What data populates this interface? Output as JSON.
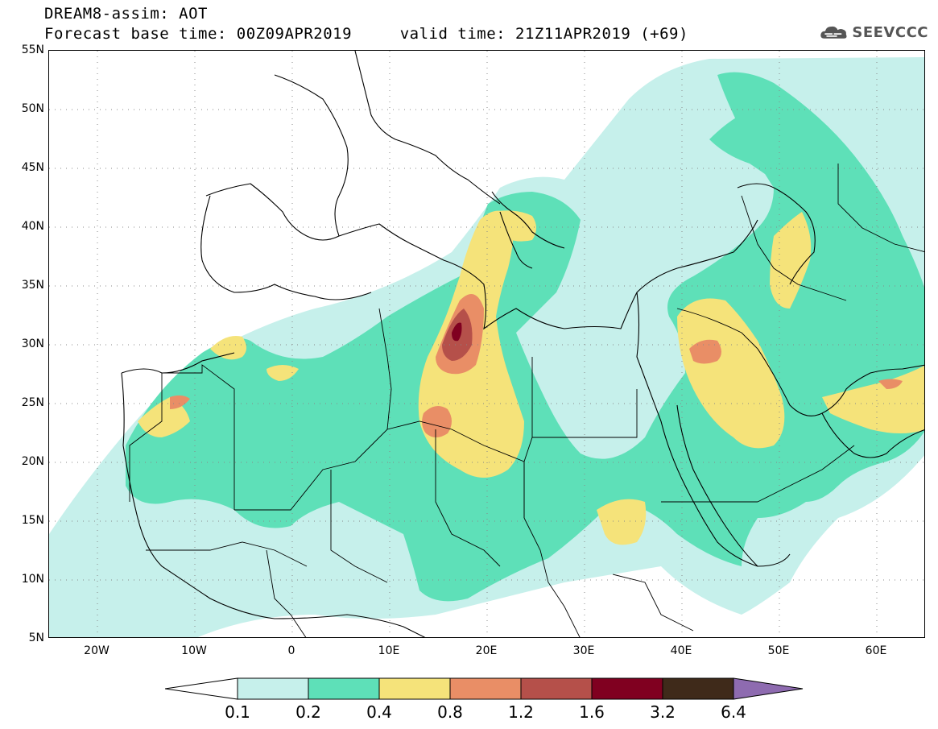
{
  "header": {
    "line1": "DREAM8-assim: AOT",
    "line2": "Forecast base time: 00Z09APR2019     valid time: 21Z11APR2019 (+69)"
  },
  "logo": {
    "text": "SEEVCCC",
    "icon": "cloud-icon"
  },
  "map": {
    "lat_labels": [
      "55N",
      "50N",
      "45N",
      "40N",
      "35N",
      "30N",
      "25N",
      "20N",
      "15N",
      "10N",
      "5N"
    ],
    "lon_labels": [
      "20W",
      "10W",
      "0",
      "10E",
      "20E",
      "30E",
      "40E",
      "50E",
      "60E"
    ],
    "lon_range": [
      -25,
      65
    ],
    "lat_range": [
      5,
      55
    ],
    "grid": "dotted"
  },
  "colorbar": {
    "labels": [
      "0.1",
      "0.2",
      "0.4",
      "0.8",
      "1.2",
      "1.6",
      "3.2",
      "6.4"
    ],
    "colors": [
      "#ffffff",
      "#c6f0eb",
      "#5ee0b8",
      "#f5e37a",
      "#e98e66",
      "#b5504a",
      "#800020",
      "#3f2a1a",
      "#8e6bb0"
    ]
  },
  "colors": {
    "c01": "#c6f0eb",
    "c02": "#5ee0b8",
    "c04": "#f5e37a",
    "c08": "#e98e66",
    "c12": "#b5504a",
    "c16": "#800020"
  }
}
